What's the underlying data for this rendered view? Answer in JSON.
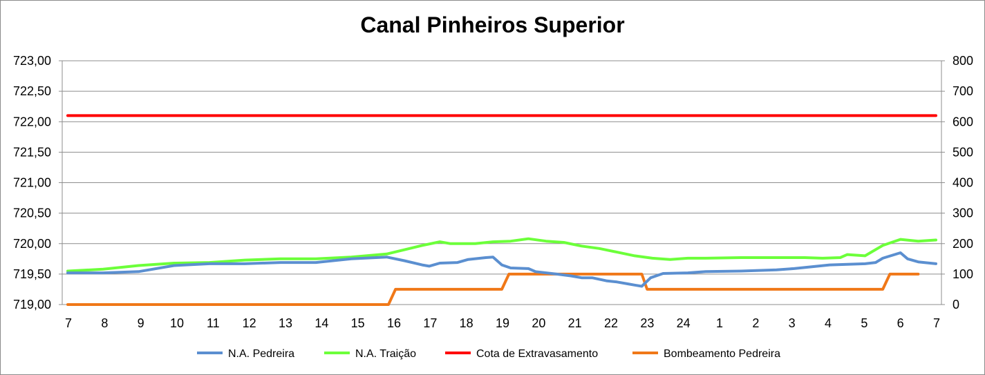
{
  "chart_data": {
    "type": "line",
    "title": "Canal Pinheiros Superior",
    "x_tick_labels": [
      "7",
      "8",
      "9",
      "10",
      "11",
      "12",
      "13",
      "14",
      "15",
      "16",
      "17",
      "18",
      "19",
      "20",
      "21",
      "22",
      "23",
      "24",
      "1",
      "2",
      "3",
      "4",
      "5",
      "6",
      "7"
    ],
    "y_left": {
      "min": 719,
      "max": 723,
      "ticks": [
        "719,00",
        "719,50",
        "720,00",
        "720,50",
        "721,00",
        "721,50",
        "722,00",
        "722,50",
        "723,00"
      ]
    },
    "y_right": {
      "min": 0,
      "max": 800,
      "ticks": [
        "0",
        "100",
        "200",
        "300",
        "400",
        "500",
        "600",
        "700",
        "800"
      ]
    },
    "grid": true,
    "legend_position": "bottom",
    "series": [
      {
        "name": "N.A. Pedreira",
        "axis": "left",
        "color": "#5b8fd0",
        "points": [
          [
            0,
            719.52
          ],
          [
            1,
            719.52
          ],
          [
            2,
            719.54
          ],
          [
            3,
            719.64
          ],
          [
            4,
            719.67
          ],
          [
            5,
            719.67
          ],
          [
            6,
            719.69
          ],
          [
            7,
            719.69
          ],
          [
            8,
            719.75
          ],
          [
            9,
            719.78
          ],
          [
            9.5,
            719.72
          ],
          [
            10,
            719.65
          ],
          [
            10.2,
            719.63
          ],
          [
            10.5,
            719.68
          ],
          [
            11,
            719.69
          ],
          [
            11.3,
            719.74
          ],
          [
            11.8,
            719.77
          ],
          [
            12,
            719.78
          ],
          [
            12.25,
            719.65
          ],
          [
            12.5,
            719.6
          ],
          [
            13,
            719.59
          ],
          [
            13.2,
            719.54
          ],
          [
            13.8,
            719.5
          ],
          [
            14.2,
            719.47
          ],
          [
            14.5,
            719.44
          ],
          [
            14.8,
            719.44
          ],
          [
            15.2,
            719.39
          ],
          [
            15.5,
            719.37
          ],
          [
            15.8,
            719.34
          ],
          [
            16,
            719.32
          ],
          [
            16.2,
            719.3
          ],
          [
            16.45,
            719.44
          ],
          [
            16.8,
            719.51
          ],
          [
            17.5,
            719.52
          ],
          [
            18,
            719.54
          ],
          [
            19,
            719.55
          ],
          [
            20,
            719.57
          ],
          [
            20.5,
            719.59
          ],
          [
            21,
            719.62
          ],
          [
            21.5,
            719.65
          ],
          [
            22,
            719.66
          ],
          [
            22.5,
            719.67
          ],
          [
            22.8,
            719.69
          ],
          [
            23,
            719.76
          ],
          [
            23.5,
            719.85
          ],
          [
            23.7,
            719.75
          ],
          [
            24,
            719.7
          ],
          [
            24.5,
            719.67
          ]
        ]
      },
      {
        "name": "N.A. Traição",
        "axis": "left",
        "color": "#6cff3a",
        "points": [
          [
            0,
            719.55
          ],
          [
            1,
            719.58
          ],
          [
            2,
            719.64
          ],
          [
            3,
            719.68
          ],
          [
            4,
            719.69
          ],
          [
            5,
            719.73
          ],
          [
            6,
            719.75
          ],
          [
            7,
            719.75
          ],
          [
            8,
            719.78
          ],
          [
            9,
            719.83
          ],
          [
            10,
            719.97
          ],
          [
            10.5,
            720.03
          ],
          [
            10.8,
            720.0
          ],
          [
            11.5,
            720.0
          ],
          [
            12,
            720.03
          ],
          [
            12.5,
            720.04
          ],
          [
            13,
            720.08
          ],
          [
            13.5,
            720.04
          ],
          [
            14,
            720.02
          ],
          [
            14.5,
            719.96
          ],
          [
            15,
            719.92
          ],
          [
            15.5,
            719.86
          ],
          [
            16,
            719.8
          ],
          [
            16.5,
            719.76
          ],
          [
            17,
            719.74
          ],
          [
            17.5,
            719.76
          ],
          [
            18,
            719.76
          ],
          [
            19,
            719.77
          ],
          [
            20,
            719.77
          ],
          [
            20.8,
            719.77
          ],
          [
            21.3,
            719.76
          ],
          [
            21.8,
            719.77
          ],
          [
            22,
            719.82
          ],
          [
            22.5,
            719.8
          ],
          [
            23,
            719.97
          ],
          [
            23.5,
            720.07
          ],
          [
            24,
            720.04
          ],
          [
            24.5,
            720.06
          ]
        ]
      },
      {
        "name": "Cota de Extravasamento",
        "axis": "left",
        "color": "#ff0000",
        "points": [
          [
            0,
            722.1
          ],
          [
            24.5,
            722.1
          ]
        ]
      },
      {
        "name": "Bombeamento Pedreira",
        "axis": "right",
        "color": "#f07818",
        "points": [
          [
            0,
            0
          ],
          [
            9.05,
            0
          ],
          [
            9.25,
            50
          ],
          [
            12.25,
            50
          ],
          [
            12.45,
            100
          ],
          [
            16.2,
            100
          ],
          [
            16.35,
            50
          ],
          [
            23,
            50
          ],
          [
            23.2,
            100
          ],
          [
            24,
            100
          ]
        ]
      }
    ]
  }
}
